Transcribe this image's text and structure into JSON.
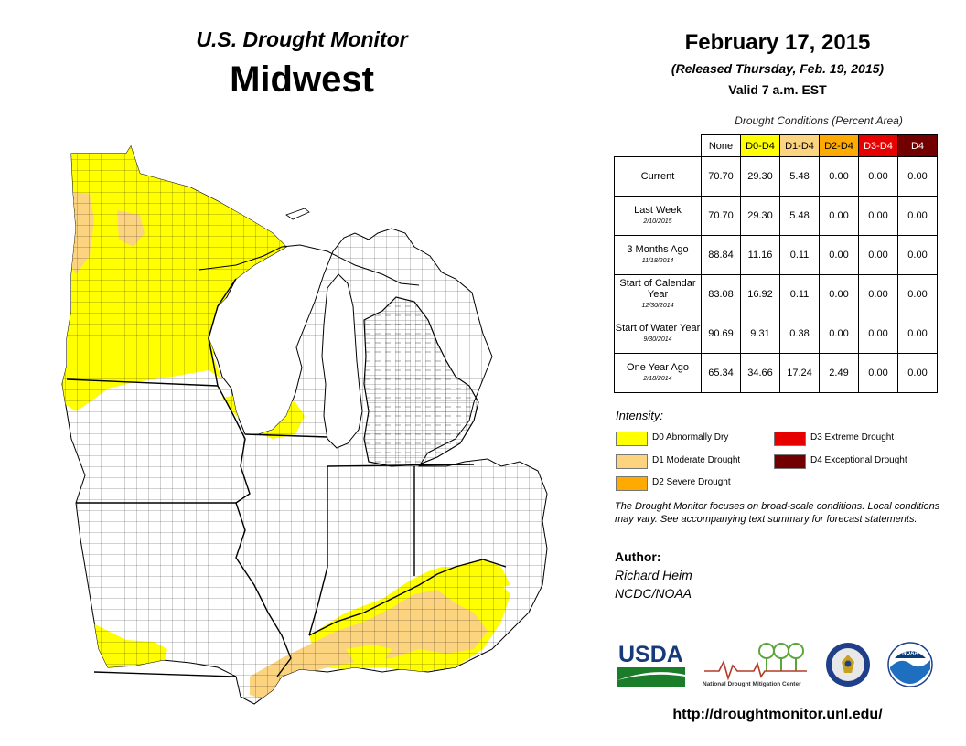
{
  "header": {
    "monitor_title": "U.S. Drought Monitor",
    "region": "Midwest",
    "date": "February 17, 2015",
    "released": "(Released Thursday, Feb. 19, 2015)",
    "valid": "Valid  7 a.m. EST"
  },
  "table": {
    "caption": "Drought Conditions (Percent Area)",
    "columns": [
      "None",
      "D0-D4",
      "D1-D4",
      "D2-D4",
      "D3-D4",
      "D4"
    ],
    "rows": [
      {
        "label": "Current",
        "date": "",
        "values": [
          "70.70",
          "29.30",
          "5.48",
          "0.00",
          "0.00",
          "0.00"
        ]
      },
      {
        "label": "Last Week",
        "date": "2/10/2015",
        "values": [
          "70.70",
          "29.30",
          "5.48",
          "0.00",
          "0.00",
          "0.00"
        ]
      },
      {
        "label": "3 Months Ago",
        "date": "11/18/2014",
        "values": [
          "88.84",
          "11.16",
          "0.11",
          "0.00",
          "0.00",
          "0.00"
        ]
      },
      {
        "label": "Start of Calendar Year",
        "date": "12/30/2014",
        "values": [
          "83.08",
          "16.92",
          "0.11",
          "0.00",
          "0.00",
          "0.00"
        ]
      },
      {
        "label": "Start of Water Year",
        "date": "9/30/2014",
        "values": [
          "90.69",
          "9.31",
          "0.38",
          "0.00",
          "0.00",
          "0.00"
        ]
      },
      {
        "label": "One Year Ago",
        "date": "2/18/2014",
        "values": [
          "65.34",
          "34.66",
          "17.24",
          "2.49",
          "0.00",
          "0.00"
        ]
      }
    ]
  },
  "legend": {
    "title": "Intensity:",
    "items": [
      {
        "code": "D0",
        "label": "D0 Abnormally Dry",
        "color": "#ffff00"
      },
      {
        "code": "D1",
        "label": "D1 Moderate Drought",
        "color": "#fcd37f"
      },
      {
        "code": "D2",
        "label": "D2 Severe Drought",
        "color": "#ffaa00"
      },
      {
        "code": "D3",
        "label": "D3 Extreme Drought",
        "color": "#e60000"
      },
      {
        "code": "D4",
        "label": "D4 Exceptional Drought",
        "color": "#730000"
      }
    ]
  },
  "note": "The Drought Monitor focuses on broad-scale conditions. Local conditions may vary. See accompanying text summary for forecast statements.",
  "author": {
    "heading": "Author:",
    "name": "Richard Heim",
    "org": "NCDC/NOAA"
  },
  "logos": {
    "usda": "USDA",
    "ndmc_line1": "National Drought Mitigation Center",
    "usda_icon": "usda-logo",
    "ndmc_icon": "ndmc-logo",
    "doc_icon": "department-of-commerce-seal",
    "noaa_icon": "noaa-logo",
    "noaa": "NOAA"
  },
  "url": "http://droughtmonitor.unl.edu/",
  "colors": {
    "none": "#ffffff",
    "d0": "#ffff00",
    "d1": "#fcd37f",
    "d2": "#ffaa00",
    "d3": "#e60000",
    "d4": "#730000",
    "water": "#ffffff"
  }
}
